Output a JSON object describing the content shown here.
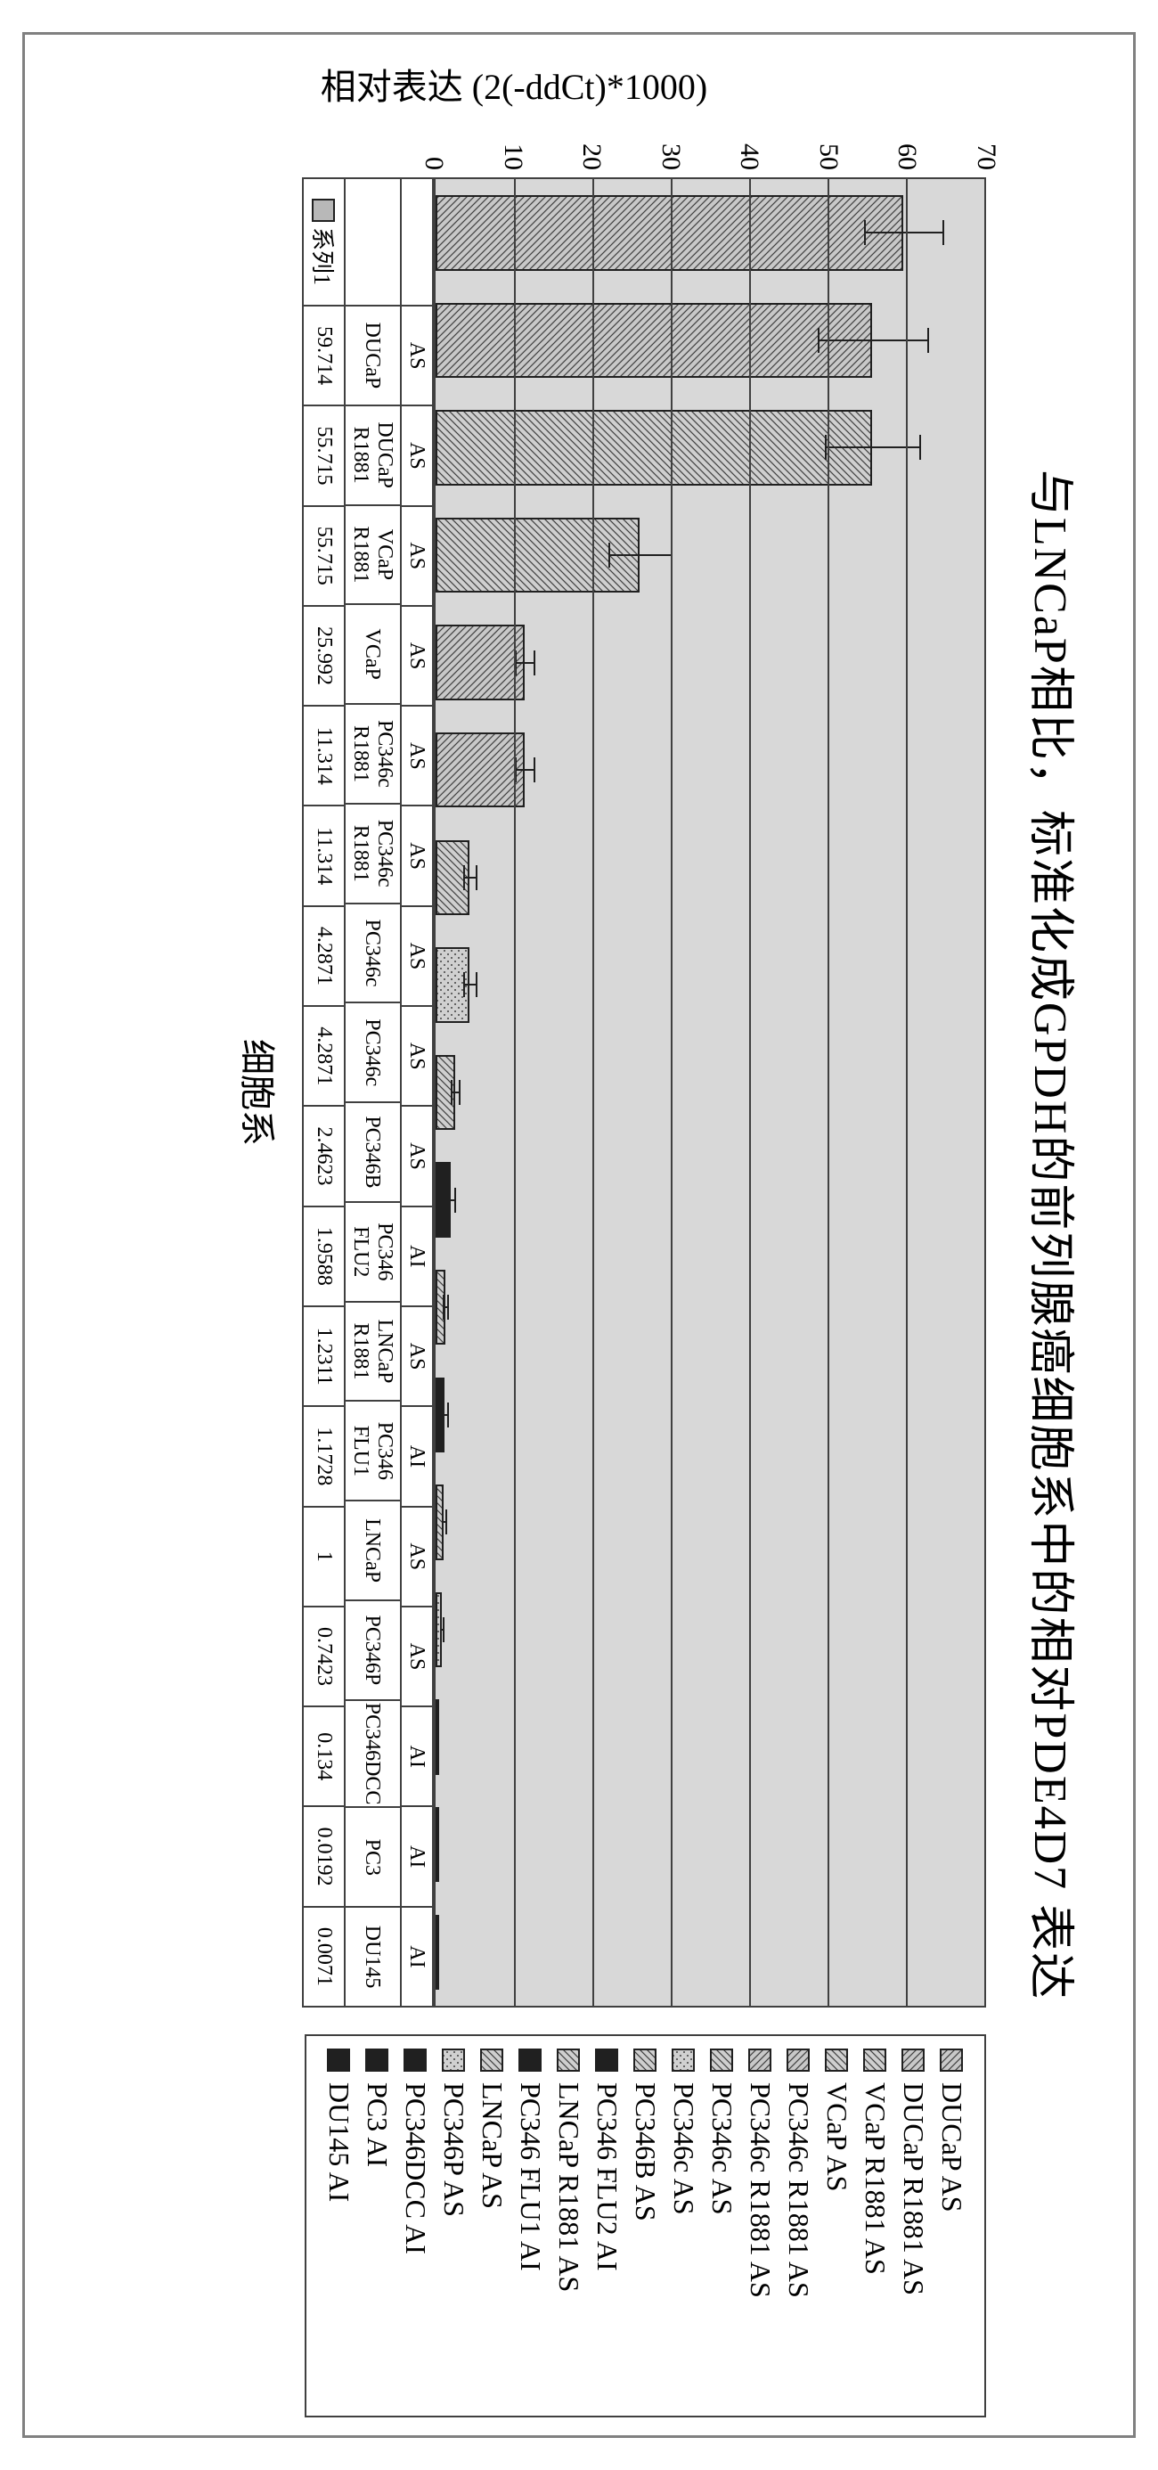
{
  "title": "与LNCaP相比，标准化成GPDH的前列腺癌细胞系中的相对PDE4D7 表达",
  "y_axis_label": "相对表达 (2(-ddCt)*1000)",
  "x_axis_label": "细胞系",
  "series_row_label": "系列1",
  "chart": {
    "type": "bar",
    "ylim": [
      0,
      70
    ],
    "ytick_step": 10,
    "yticks": [
      0,
      10,
      20,
      30,
      40,
      50,
      60,
      70
    ],
    "grid_color": "#404040",
    "background_color": "#d8d8d8",
    "bar_border_color": "#202020",
    "bar_width": 0.7,
    "title_fontsize": 52,
    "label_fontsize": 40,
    "tick_fontsize": 30
  },
  "legend": [
    {
      "label": "DUCaP AS",
      "pattern": "patA"
    },
    {
      "label": "DUCaP R1881 AS",
      "pattern": "patA"
    },
    {
      "label": "VCaP R1881 AS",
      "pattern": "patB"
    },
    {
      "label": "VCaP AS",
      "pattern": "patB"
    },
    {
      "label": "PC346c R1881 AS",
      "pattern": "patA"
    },
    {
      "label": "PC346c R1881 AS",
      "pattern": "patA"
    },
    {
      "label": "PC346c AS",
      "pattern": "patB"
    },
    {
      "label": "PC346c AS",
      "pattern": "patDot"
    },
    {
      "label": "PC346B AS",
      "pattern": "patB"
    },
    {
      "label": "PC346 FLU2 AI",
      "pattern": "patD"
    },
    {
      "label": "LNCaP R1881 AS",
      "pattern": "patB"
    },
    {
      "label": "PC346 FLU1 AI",
      "pattern": "patD"
    },
    {
      "label": "LNCaP AS",
      "pattern": "patB"
    },
    {
      "label": "PC346P AS",
      "pattern": "patDot"
    },
    {
      "label": "PC346DCC AI",
      "pattern": "patD"
    },
    {
      "label": "PC3 AI",
      "pattern": "patD"
    },
    {
      "label": "DU145 AI",
      "pattern": "patD"
    }
  ],
  "data": [
    {
      "group": "AS",
      "name": "DUCaP",
      "value": 59.714,
      "display": "59.714",
      "pattern": "patA",
      "err": 5
    },
    {
      "group": "AS",
      "name": "DUCaP R1881",
      "value": 55.715,
      "display": "55.715",
      "pattern": "patA",
      "err": 7
    },
    {
      "group": "AS",
      "name": "VCaP R1881",
      "value": 55.715,
      "display": "55.715",
      "pattern": "patB",
      "err": 6
    },
    {
      "group": "AS",
      "name": "VCaP",
      "value": 25.992,
      "display": "25.992",
      "pattern": "patB",
      "err": 4
    },
    {
      "group": "AS",
      "name": "PC346c R1881",
      "value": 11.314,
      "display": "11.314",
      "pattern": "patA",
      "err": 1.2
    },
    {
      "group": "AS",
      "name": "PC346c R1881",
      "value": 11.314,
      "display": "11.314",
      "pattern": "patA",
      "err": 1.2
    },
    {
      "group": "AS",
      "name": "PC346c",
      "value": 4.2871,
      "display": "4.2871",
      "pattern": "patB",
      "err": 0.8
    },
    {
      "group": "AS",
      "name": "PC346c",
      "value": 4.2871,
      "display": "4.2871",
      "pattern": "patDot",
      "err": 0.8
    },
    {
      "group": "AS",
      "name": "PC346B",
      "value": 2.4623,
      "display": "2.4623",
      "pattern": "patB",
      "err": 0.5
    },
    {
      "group": "AI",
      "name": "PC346 FLU2",
      "value": 1.9588,
      "display": "1.9588",
      "pattern": "patD",
      "err": 0.4
    },
    {
      "group": "AS",
      "name": "LNCaP R1881",
      "value": 1.2311,
      "display": "1.2311",
      "pattern": "patB",
      "err": 0.3
    },
    {
      "group": "AI",
      "name": "PC346 FLU1",
      "value": 1.1728,
      "display": "1.1728",
      "pattern": "patD",
      "err": 0.3
    },
    {
      "group": "AS",
      "name": "LNCaP",
      "value": 1.0,
      "display": "1",
      "pattern": "patB",
      "err": 0.2
    },
    {
      "group": "AS",
      "name": "PC346P",
      "value": 0.7423,
      "display": "0.7423",
      "pattern": "patDot",
      "err": 0.2
    },
    {
      "group": "AI",
      "name": "PC346DCC",
      "value": 0.134,
      "display": "0.134",
      "pattern": "patD",
      "err": 0
    },
    {
      "group": "AI",
      "name": "PC3",
      "value": 0.0192,
      "display": "0.0192",
      "pattern": "patD",
      "err": 0
    },
    {
      "group": "AI",
      "name": "DU145",
      "value": 0.0071,
      "display": "0.0071",
      "pattern": "patD",
      "err": 0
    }
  ]
}
